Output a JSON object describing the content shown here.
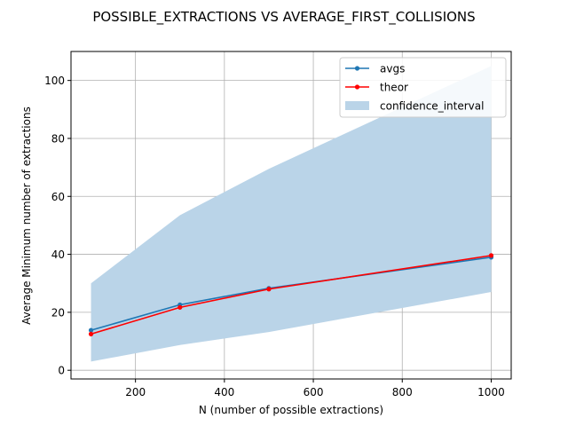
{
  "chart_data": {
    "type": "line",
    "title": "POSSIBLE_EXTRACTIONS VS AVERAGE_FIRST_COLLISIONS",
    "xlabel": "N (number of possible extractions)",
    "ylabel": "Average Minimum number of extractions",
    "xlim": [
      55,
      1045
    ],
    "ylim": [
      -3,
      110
    ],
    "xticks": [
      200,
      400,
      600,
      800,
      1000
    ],
    "yticks": [
      0,
      20,
      40,
      60,
      80,
      100
    ],
    "grid": true,
    "legend_position": "top-right",
    "x": [
      100,
      300,
      500,
      1000
    ],
    "series": [
      {
        "name": "avgs",
        "color": "#1f77b4",
        "values": [
          13.8,
          22.6,
          28.3,
          39.0
        ]
      },
      {
        "name": "theor",
        "color": "#ff0000",
        "values": [
          12.5,
          21.7,
          28.0,
          39.6
        ]
      }
    ],
    "band": {
      "name": "confidence_interval",
      "color": "#bad4e8",
      "x": [
        100,
        300,
        500,
        1000
      ],
      "lower": [
        3.0,
        8.7,
        13.2,
        27.0
      ],
      "upper": [
        30.0,
        53.5,
        69.5,
        105.0
      ]
    }
  }
}
